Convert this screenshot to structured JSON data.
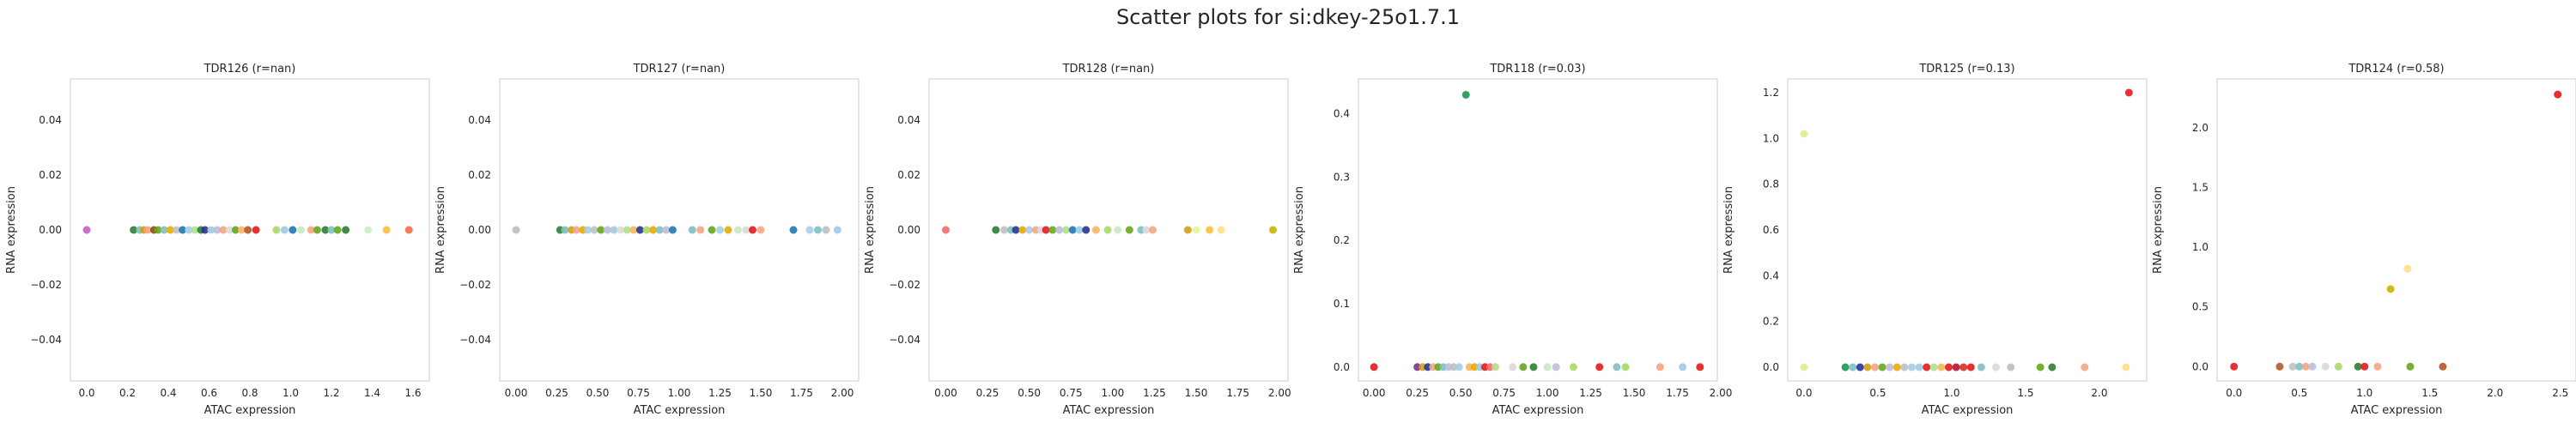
{
  "suptitle": "Scatter plots for si:dkey-25o1.7.1",
  "chart_data": [
    {
      "type": "scatter",
      "title": "TDR126 (r=nan)",
      "xlabel": "ATAC expression",
      "ylabel": "RNA expression",
      "xlim": [
        -0.08,
        1.68
      ],
      "ylim": [
        -0.055,
        0.055
      ],
      "xticks": [
        "0.0",
        "0.2",
        "0.4",
        "0.6",
        "0.8",
        "1.0",
        "1.2",
        "1.4",
        "1.6"
      ],
      "xtick_values": [
        0,
        0.2,
        0.4,
        0.6,
        0.8,
        1.0,
        1.2,
        1.4,
        1.6
      ],
      "yticks": [
        "−0.04",
        "−0.02",
        "0.00",
        "0.02",
        "0.04"
      ],
      "ytick_values": [
        -0.04,
        -0.02,
        0,
        0.02,
        0.04
      ],
      "points": [
        {
          "x": 0.0,
          "y": 0,
          "color": "#c45fc4"
        },
        {
          "x": 0.23,
          "y": 0,
          "color": "#2e7d32"
        },
        {
          "x": 0.26,
          "y": 0,
          "color": "#7fbfbf"
        },
        {
          "x": 0.28,
          "y": 0,
          "color": "#d4a017"
        },
        {
          "x": 0.3,
          "y": 0,
          "color": "#f4a582"
        },
        {
          "x": 0.33,
          "y": 0,
          "color": "#8c510a"
        },
        {
          "x": 0.35,
          "y": 0,
          "color": "#66a61e"
        },
        {
          "x": 0.38,
          "y": 0,
          "color": "#7fbfbf"
        },
        {
          "x": 0.41,
          "y": 0,
          "color": "#e6ab02"
        },
        {
          "x": 0.44,
          "y": 0,
          "color": "#c0c0c0"
        },
        {
          "x": 0.47,
          "y": 0,
          "color": "#1f78b4"
        },
        {
          "x": 0.5,
          "y": 0,
          "color": "#a6cee3"
        },
        {
          "x": 0.53,
          "y": 0,
          "color": "#b2df8a"
        },
        {
          "x": 0.56,
          "y": 0,
          "color": "#2e7d32"
        },
        {
          "x": 0.58,
          "y": 0,
          "color": "#253494"
        },
        {
          "x": 0.61,
          "y": 0,
          "color": "#9ecae1"
        },
        {
          "x": 0.64,
          "y": 0,
          "color": "#bcbddc"
        },
        {
          "x": 0.67,
          "y": 0,
          "color": "#f4a582"
        },
        {
          "x": 0.7,
          "y": 0,
          "color": "#d9d9d9"
        },
        {
          "x": 0.73,
          "y": 0,
          "color": "#66a61e"
        },
        {
          "x": 0.76,
          "y": 0,
          "color": "#fdb462"
        },
        {
          "x": 0.79,
          "y": 0,
          "color": "#b15928"
        },
        {
          "x": 0.83,
          "y": 0,
          "color": "#e31a1c"
        },
        {
          "x": 0.93,
          "y": 0,
          "color": "#a6d96a"
        },
        {
          "x": 0.97,
          "y": 0,
          "color": "#9ecae1"
        },
        {
          "x": 1.01,
          "y": 0,
          "color": "#1f78b4"
        },
        {
          "x": 1.05,
          "y": 0,
          "color": "#c7e9c0"
        },
        {
          "x": 1.1,
          "y": 0,
          "color": "#f4a582"
        },
        {
          "x": 1.13,
          "y": 0,
          "color": "#66a61e"
        },
        {
          "x": 1.17,
          "y": 0,
          "color": "#2e7d32"
        },
        {
          "x": 1.2,
          "y": 0,
          "color": "#7fbfbf"
        },
        {
          "x": 1.23,
          "y": 0,
          "color": "#66a61e"
        },
        {
          "x": 1.27,
          "y": 0,
          "color": "#2e7d32"
        },
        {
          "x": 1.38,
          "y": 0,
          "color": "#ccebc5"
        },
        {
          "x": 1.47,
          "y": 0,
          "color": "#fdbf3c"
        },
        {
          "x": 1.58,
          "y": 0,
          "color": "#f46d43"
        }
      ]
    },
    {
      "type": "scatter",
      "title": "TDR127 (r=nan)",
      "xlabel": "ATAC expression",
      "ylabel": "RNA expression",
      "xlim": [
        -0.1,
        2.1
      ],
      "ylim": [
        -0.055,
        0.055
      ],
      "xticks": [
        "0.00",
        "0.25",
        "0.50",
        "0.75",
        "1.00",
        "1.25",
        "1.50",
        "1.75",
        "2.00"
      ],
      "xtick_values": [
        0,
        0.25,
        0.5,
        0.75,
        1.0,
        1.25,
        1.5,
        1.75,
        2.0
      ],
      "yticks": [
        "−0.04",
        "−0.02",
        "0.00",
        "0.02",
        "0.04"
      ],
      "ytick_values": [
        -0.04,
        -0.02,
        0,
        0.02,
        0.04
      ],
      "points": [
        {
          "x": 0.0,
          "y": 0,
          "color": "#bdbdbd"
        },
        {
          "x": 0.27,
          "y": 0,
          "color": "#2e7d32"
        },
        {
          "x": 0.3,
          "y": 0,
          "color": "#7fbfbf"
        },
        {
          "x": 0.34,
          "y": 0,
          "color": "#d4a017"
        },
        {
          "x": 0.37,
          "y": 0,
          "color": "#f4a582"
        },
        {
          "x": 0.41,
          "y": 0,
          "color": "#e6ab02"
        },
        {
          "x": 0.44,
          "y": 0,
          "color": "#a6cee3"
        },
        {
          "x": 0.48,
          "y": 0,
          "color": "#c0c0c0"
        },
        {
          "x": 0.52,
          "y": 0,
          "color": "#66a61e"
        },
        {
          "x": 0.56,
          "y": 0,
          "color": "#bcbddc"
        },
        {
          "x": 0.6,
          "y": 0,
          "color": "#9ecae1"
        },
        {
          "x": 0.64,
          "y": 0,
          "color": "#d9d9d9"
        },
        {
          "x": 0.68,
          "y": 0,
          "color": "#b2df8a"
        },
        {
          "x": 0.72,
          "y": 0,
          "color": "#fdb462"
        },
        {
          "x": 0.76,
          "y": 0,
          "color": "#253494"
        },
        {
          "x": 0.8,
          "y": 0,
          "color": "#a6d96a"
        },
        {
          "x": 0.84,
          "y": 0,
          "color": "#e6ab02"
        },
        {
          "x": 0.88,
          "y": 0,
          "color": "#7fbfbf"
        },
        {
          "x": 0.92,
          "y": 0,
          "color": "#bcbddc"
        },
        {
          "x": 0.96,
          "y": 0,
          "color": "#1f78b4"
        },
        {
          "x": 1.08,
          "y": 0,
          "color": "#7fbfbf"
        },
        {
          "x": 1.13,
          "y": 0,
          "color": "#f4a582"
        },
        {
          "x": 1.2,
          "y": 0,
          "color": "#66a61e"
        },
        {
          "x": 1.25,
          "y": 0,
          "color": "#a6cee3"
        },
        {
          "x": 1.3,
          "y": 0,
          "color": "#e6ab02"
        },
        {
          "x": 1.36,
          "y": 0,
          "color": "#c7e9c0"
        },
        {
          "x": 1.41,
          "y": 0,
          "color": "#d9d9d9"
        },
        {
          "x": 1.45,
          "y": 0,
          "color": "#e31a1c"
        },
        {
          "x": 1.5,
          "y": 0,
          "color": "#f4a582"
        },
        {
          "x": 1.7,
          "y": 0,
          "color": "#1f78b4"
        },
        {
          "x": 1.8,
          "y": 0,
          "color": "#a6cee3"
        },
        {
          "x": 1.85,
          "y": 0,
          "color": "#7fbfbf"
        },
        {
          "x": 1.9,
          "y": 0,
          "color": "#bdbdbd"
        },
        {
          "x": 1.97,
          "y": 0,
          "color": "#9ecae1"
        }
      ]
    },
    {
      "type": "scatter",
      "title": "TDR128 (r=nan)",
      "xlabel": "ATAC expression",
      "ylabel": "RNA expression",
      "xlim": [
        -0.1,
        2.05
      ],
      "ylim": [
        -0.055,
        0.055
      ],
      "xticks": [
        "0.00",
        "0.25",
        "0.50",
        "0.75",
        "1.00",
        "1.25",
        "1.50",
        "1.75",
        "2.00"
      ],
      "xtick_values": [
        0,
        0.25,
        0.5,
        0.75,
        1.0,
        1.25,
        1.5,
        1.75,
        2.0
      ],
      "yticks": [
        "−0.04",
        "−0.02",
        "0.00",
        "0.02",
        "0.04"
      ],
      "ytick_values": [
        -0.04,
        -0.02,
        0,
        0.02,
        0.04
      ],
      "points": [
        {
          "x": 0.0,
          "y": 0,
          "color": "#f46d6d"
        },
        {
          "x": 0.3,
          "y": 0,
          "color": "#2e7d32"
        },
        {
          "x": 0.35,
          "y": 0,
          "color": "#c0c0c0"
        },
        {
          "x": 0.39,
          "y": 0,
          "color": "#7fbfbf"
        },
        {
          "x": 0.42,
          "y": 0,
          "color": "#253494"
        },
        {
          "x": 0.46,
          "y": 0,
          "color": "#e6ab02"
        },
        {
          "x": 0.5,
          "y": 0,
          "color": "#a6cee3"
        },
        {
          "x": 0.54,
          "y": 0,
          "color": "#f4a582"
        },
        {
          "x": 0.57,
          "y": 0,
          "color": "#d9d9d9"
        },
        {
          "x": 0.6,
          "y": 0,
          "color": "#e31a1c"
        },
        {
          "x": 0.64,
          "y": 0,
          "color": "#66a61e"
        },
        {
          "x": 0.68,
          "y": 0,
          "color": "#bcbddc"
        },
        {
          "x": 0.72,
          "y": 0,
          "color": "#b2df8a"
        },
        {
          "x": 0.76,
          "y": 0,
          "color": "#1f78b4"
        },
        {
          "x": 0.8,
          "y": 0,
          "color": "#9ecae1"
        },
        {
          "x": 0.84,
          "y": 0,
          "color": "#253494"
        },
        {
          "x": 0.9,
          "y": 0,
          "color": "#fdb462"
        },
        {
          "x": 0.97,
          "y": 0,
          "color": "#a6d96a"
        },
        {
          "x": 1.03,
          "y": 0,
          "color": "#c7e9c0"
        },
        {
          "x": 1.1,
          "y": 0,
          "color": "#66a61e"
        },
        {
          "x": 1.17,
          "y": 0,
          "color": "#7fbfbf"
        },
        {
          "x": 1.2,
          "y": 0,
          "color": "#d9d9d9"
        },
        {
          "x": 1.24,
          "y": 0,
          "color": "#f4a582"
        },
        {
          "x": 1.45,
          "y": 0,
          "color": "#d4a017"
        },
        {
          "x": 1.5,
          "y": 0,
          "color": "#e6f598"
        },
        {
          "x": 1.58,
          "y": 0,
          "color": "#fdbf3c"
        },
        {
          "x": 1.65,
          "y": 0,
          "color": "#fee08b"
        },
        {
          "x": 1.96,
          "y": 0,
          "color": "#c9b400"
        }
      ]
    },
    {
      "type": "scatter",
      "title": "TDR118 (r=0.03)",
      "xlabel": "ATAC expression",
      "ylabel": "RNA expression",
      "xlim": [
        -0.09,
        1.98
      ],
      "ylim": [
        -0.022,
        0.455
      ],
      "xticks": [
        "0.00",
        "0.25",
        "0.50",
        "0.75",
        "1.00",
        "1.25",
        "1.50",
        "1.75",
        "2.00"
      ],
      "xtick_values": [
        0,
        0.25,
        0.5,
        0.75,
        1.0,
        1.25,
        1.5,
        1.75,
        2.0
      ],
      "yticks": [
        "0.0",
        "0.1",
        "0.2",
        "0.3",
        "0.4"
      ],
      "ytick_values": [
        0,
        0.1,
        0.2,
        0.3,
        0.4
      ],
      "points": [
        {
          "x": 0.0,
          "y": 0,
          "color": "#e31a1c"
        },
        {
          "x": 0.25,
          "y": 0,
          "color": "#7b3294"
        },
        {
          "x": 0.28,
          "y": 0,
          "color": "#d4a017"
        },
        {
          "x": 0.31,
          "y": 0,
          "color": "#253494"
        },
        {
          "x": 0.34,
          "y": 0,
          "color": "#f4a582"
        },
        {
          "x": 0.37,
          "y": 0,
          "color": "#66a61e"
        },
        {
          "x": 0.4,
          "y": 0,
          "color": "#7fbfbf"
        },
        {
          "x": 0.43,
          "y": 0,
          "color": "#bcbddc"
        },
        {
          "x": 0.46,
          "y": 0,
          "color": "#c0c0c0"
        },
        {
          "x": 0.49,
          "y": 0,
          "color": "#a6cee3"
        },
        {
          "x": 0.53,
          "y": 0.43,
          "color": "#1a9850"
        },
        {
          "x": 0.55,
          "y": 0,
          "color": "#fdb462"
        },
        {
          "x": 0.58,
          "y": 0,
          "color": "#e6ab02"
        },
        {
          "x": 0.61,
          "y": 0,
          "color": "#9ecae1"
        },
        {
          "x": 0.64,
          "y": 0,
          "color": "#e31a1c"
        },
        {
          "x": 0.67,
          "y": 0,
          "color": "#f46d6d"
        },
        {
          "x": 0.7,
          "y": 0,
          "color": "#b2df8a"
        },
        {
          "x": 0.8,
          "y": 0,
          "color": "#d9d9d9"
        },
        {
          "x": 0.86,
          "y": 0,
          "color": "#66a61e"
        },
        {
          "x": 0.92,
          "y": 0,
          "color": "#2e7d32"
        },
        {
          "x": 1.0,
          "y": 0,
          "color": "#c7e9c0"
        },
        {
          "x": 1.05,
          "y": 0,
          "color": "#bcbddc"
        },
        {
          "x": 1.15,
          "y": 0,
          "color": "#a6d96a"
        },
        {
          "x": 1.3,
          "y": 0,
          "color": "#e31a1c"
        },
        {
          "x": 1.4,
          "y": 0,
          "color": "#7fbfbf"
        },
        {
          "x": 1.45,
          "y": 0,
          "color": "#a6d96a"
        },
        {
          "x": 1.65,
          "y": 0,
          "color": "#f4a582"
        },
        {
          "x": 1.78,
          "y": 0,
          "color": "#9ecae1"
        },
        {
          "x": 1.88,
          "y": 0,
          "color": "#e31a1c"
        }
      ]
    },
    {
      "type": "scatter",
      "title": "TDR125 (r=0.13)",
      "xlabel": "ATAC expression",
      "ylabel": "RNA expression",
      "xlim": [
        -0.11,
        2.32
      ],
      "ylim": [
        -0.06,
        1.26
      ],
      "xticks": [
        "0.0",
        "0.5",
        "1.0",
        "1.5",
        "2.0"
      ],
      "xtick_values": [
        0,
        0.5,
        1.0,
        1.5,
        2.0
      ],
      "yticks": [
        "0.0",
        "0.2",
        "0.4",
        "0.6",
        "0.8",
        "1.0",
        "1.2"
      ],
      "ytick_values": [
        0,
        0.2,
        0.4,
        0.6,
        0.8,
        1.0,
        1.2
      ],
      "points": [
        {
          "x": 0.0,
          "y": 1.02,
          "color": "#d9ef8b"
        },
        {
          "x": 0.0,
          "y": 0,
          "color": "#d9ef8b"
        },
        {
          "x": 0.28,
          "y": 0,
          "color": "#1a9850"
        },
        {
          "x": 0.33,
          "y": 0,
          "color": "#7fbfbf"
        },
        {
          "x": 0.38,
          "y": 0,
          "color": "#253494"
        },
        {
          "x": 0.43,
          "y": 0,
          "color": "#d4a017"
        },
        {
          "x": 0.48,
          "y": 0,
          "color": "#f4a582"
        },
        {
          "x": 0.53,
          "y": 0,
          "color": "#66a61e"
        },
        {
          "x": 0.58,
          "y": 0,
          "color": "#bcbddc"
        },
        {
          "x": 0.63,
          "y": 0,
          "color": "#e6ab02"
        },
        {
          "x": 0.68,
          "y": 0,
          "color": "#c0c0c0"
        },
        {
          "x": 0.73,
          "y": 0,
          "color": "#a6cee3"
        },
        {
          "x": 0.78,
          "y": 0,
          "color": "#9ecae1"
        },
        {
          "x": 0.83,
          "y": 0,
          "color": "#e31a1c"
        },
        {
          "x": 0.88,
          "y": 0,
          "color": "#b2df8a"
        },
        {
          "x": 0.93,
          "y": 0,
          "color": "#fdb462"
        },
        {
          "x": 0.98,
          "y": 0,
          "color": "#e31a1c"
        },
        {
          "x": 1.03,
          "y": 0,
          "color": "#b2182b"
        },
        {
          "x": 1.08,
          "y": 0,
          "color": "#d73027"
        },
        {
          "x": 1.13,
          "y": 0,
          "color": "#e31a1c"
        },
        {
          "x": 1.2,
          "y": 0,
          "color": "#7fbfbf"
        },
        {
          "x": 1.3,
          "y": 0,
          "color": "#d9d9d9"
        },
        {
          "x": 1.4,
          "y": 0,
          "color": "#bdbdbd"
        },
        {
          "x": 1.6,
          "y": 0,
          "color": "#66a61e"
        },
        {
          "x": 1.68,
          "y": 0,
          "color": "#2e7d32"
        },
        {
          "x": 1.9,
          "y": 0,
          "color": "#f4a582"
        },
        {
          "x": 2.18,
          "y": 0,
          "color": "#fee08b"
        },
        {
          "x": 2.2,
          "y": 1.2,
          "color": "#e31a1c"
        }
      ]
    },
    {
      "type": "scatter",
      "title": "TDR124 (r=0.58)",
      "xlabel": "ATAC expression",
      "ylabel": "RNA expression",
      "xlim": [
        -0.13,
        2.62
      ],
      "ylim": [
        -0.12,
        2.41
      ],
      "xticks": [
        "0.0",
        "0.5",
        "1.0",
        "1.5",
        "2.0",
        "2.5"
      ],
      "xtick_values": [
        0,
        0.5,
        1.0,
        1.5,
        2.0,
        2.5
      ],
      "yticks": [
        "0.0",
        "0.5",
        "1.0",
        "1.5",
        "2.0"
      ],
      "ytick_values": [
        0,
        0.5,
        1.0,
        1.5,
        2.0
      ],
      "points": [
        {
          "x": 0.0,
          "y": 0,
          "color": "#e31a1c"
        },
        {
          "x": 0.35,
          "y": 0,
          "color": "#b15928"
        },
        {
          "x": 0.45,
          "y": 0,
          "color": "#c0c0c0"
        },
        {
          "x": 0.5,
          "y": 0,
          "color": "#7fbfbf"
        },
        {
          "x": 0.55,
          "y": 0,
          "color": "#f4a582"
        },
        {
          "x": 0.6,
          "y": 0,
          "color": "#bcbddc"
        },
        {
          "x": 0.7,
          "y": 0,
          "color": "#d9d9d9"
        },
        {
          "x": 0.8,
          "y": 0,
          "color": "#a6d96a"
        },
        {
          "x": 0.95,
          "y": 0,
          "color": "#2e7d32"
        },
        {
          "x": 1.0,
          "y": 0,
          "color": "#e31a1c"
        },
        {
          "x": 1.1,
          "y": 0,
          "color": "#f4a582"
        },
        {
          "x": 1.2,
          "y": 0.65,
          "color": "#c9b400"
        },
        {
          "x": 1.33,
          "y": 0.82,
          "color": "#fee08b"
        },
        {
          "x": 1.35,
          "y": 0,
          "color": "#66a61e"
        },
        {
          "x": 1.6,
          "y": 0,
          "color": "#b15928"
        },
        {
          "x": 2.48,
          "y": 2.28,
          "color": "#e31a1c"
        }
      ]
    }
  ]
}
